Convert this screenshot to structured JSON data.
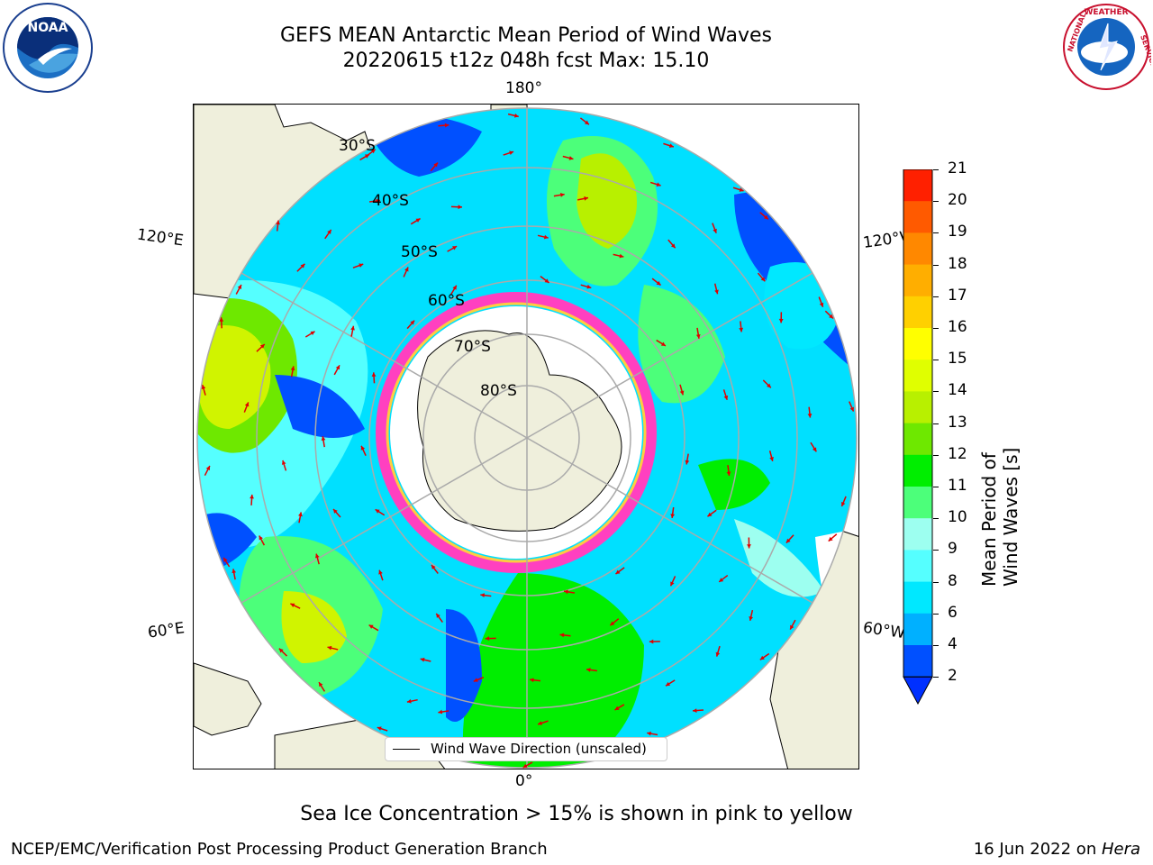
{
  "header": {
    "title": "GEFS MEAN Antarctic Mean Period of Wind Waves",
    "subtitle": "20220615 t12z 048h fcst   Max: 15.10"
  },
  "logos": {
    "left": {
      "text": "NOAA",
      "ring_text": "NATIONAL OCEANIC AND ATMOSPHERIC ADMINISTRATION",
      "bottom_text": "U.S. DEPARTMENT OF COMMERCE"
    },
    "right": {
      "ring_text": "NATIONAL WEATHER SERVICE"
    }
  },
  "map": {
    "longitude_labels": {
      "top": "180°",
      "left_upper": "120°E",
      "right_upper": "120°W",
      "left_lower": "60°E",
      "right_lower": "60°W",
      "bottom": "0°"
    },
    "latitude_labels": [
      "30°S",
      "40°S",
      "50°S",
      "60°S",
      "70°S",
      "80°S"
    ],
    "legend": "Wind Wave Direction (unscaled)"
  },
  "colorbar": {
    "title": "Mean Period of Wind Waves [s]",
    "ticks": [
      "2",
      "4",
      "6",
      "8",
      "9",
      "10",
      "11",
      "12",
      "13",
      "14",
      "15",
      "16",
      "17",
      "18",
      "19",
      "20",
      "21"
    ],
    "colors": [
      "#0050ff",
      "#00b0ff",
      "#00e8ff",
      "#55ffff",
      "#9dfff0",
      "#4cff7a",
      "#00ee00",
      "#6ee800",
      "#b8f000",
      "#e0ff00",
      "#ffff00",
      "#ffd000",
      "#ffae00",
      "#ff8800",
      "#ff5a00",
      "#ff2000",
      "#ff0000"
    ],
    "extend_color": "#0030ff"
  },
  "footnote": "Sea Ice Concentration > 15% is shown in pink to yellow",
  "footer": {
    "left": "NCEP/EMC/Verification Post Processing Product Generation Branch",
    "right_date": "16 Jun 2022 on ",
    "right_machine": "Hera"
  }
}
